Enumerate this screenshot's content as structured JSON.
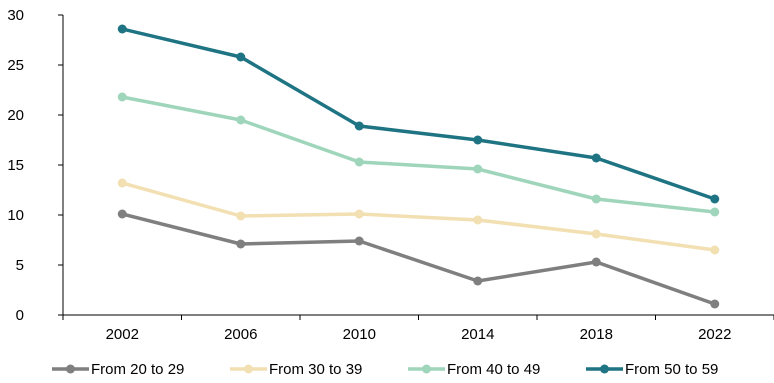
{
  "chart_data": {
    "type": "line",
    "title": "",
    "xlabel": "",
    "ylabel": "",
    "x": [
      "2002",
      "2006",
      "2010",
      "2014",
      "2018",
      "2022"
    ],
    "ylim": [
      0,
      30
    ],
    "yticks": [
      "0",
      "5",
      "10",
      "15",
      "20",
      "25",
      "30"
    ],
    "grid": false,
    "legend_position": "bottom",
    "series": [
      {
        "name": "From 20 to 29",
        "color": "#7f7f7f",
        "values": [
          10.1,
          7.1,
          7.4,
          3.4,
          5.3,
          1.1
        ]
      },
      {
        "name": "From 30 to 39",
        "color": "#f2dfb2",
        "values": [
          13.2,
          9.9,
          10.1,
          9.5,
          8.1,
          6.5
        ]
      },
      {
        "name": "From 40 to 49",
        "color": "#9fd5bb",
        "values": [
          21.8,
          19.5,
          15.3,
          14.6,
          11.6,
          10.3
        ]
      },
      {
        "name": "From 50 to 59",
        "color": "#1f7483",
        "values": [
          28.6,
          25.8,
          18.9,
          17.5,
          15.7,
          11.6
        ]
      }
    ]
  }
}
